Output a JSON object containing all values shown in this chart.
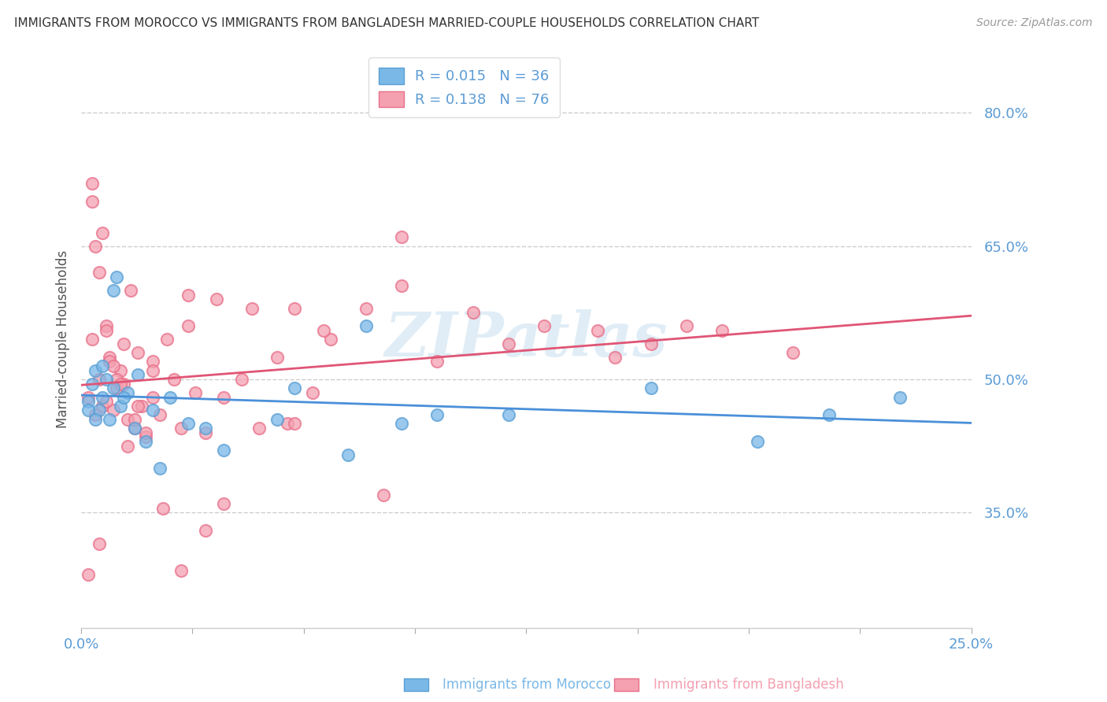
{
  "title": "IMMIGRANTS FROM MOROCCO VS IMMIGRANTS FROM BANGLADESH MARRIED-COUPLE HOUSEHOLDS CORRELATION CHART",
  "source": "Source: ZipAtlas.com",
  "xlabel_morocco": "Immigrants from Morocco",
  "xlabel_bangladesh": "Immigrants from Bangladesh",
  "ylabel": "Married-couple Households",
  "morocco_R": 0.015,
  "morocco_N": 36,
  "bangladesh_R": 0.138,
  "bangladesh_N": 76,
  "morocco_color": "#7ab8e8",
  "bangladesh_color": "#f4a0b0",
  "morocco_edge_color": "#5a9fd4",
  "bangladesh_edge_color": "#e8708a",
  "morocco_line_color": "#4a90d9",
  "bangladesh_line_color": "#e05575",
  "xlim": [
    0.0,
    0.25
  ],
  "ylim": [
    0.22,
    0.87
  ],
  "yticks": [
    0.35,
    0.5,
    0.65,
    0.8
  ],
  "ytick_labels": [
    "35.0%",
    "50.0%",
    "65.0%",
    "80.0%"
  ],
  "xticks": [
    0.0,
    0.03125,
    0.0625,
    0.09375,
    0.125,
    0.15625,
    0.1875,
    0.21875,
    0.25
  ],
  "watermark": "ZIPatlas",
  "background_color": "#ffffff",
  "grid_color": "#c8c8c8",
  "title_color": "#333333",
  "axis_label_color": "#5b9bd5",
  "legend_color": "#5b9bd5",
  "morocco_points_x": [
    0.002,
    0.003,
    0.004,
    0.005,
    0.006,
    0.007,
    0.008,
    0.009,
    0.01,
    0.011,
    0.013,
    0.015,
    0.018,
    0.02,
    0.025,
    0.03,
    0.04,
    0.06,
    0.08,
    0.09,
    0.1,
    0.12,
    0.002,
    0.004,
    0.006,
    0.009,
    0.012,
    0.016,
    0.022,
    0.035,
    0.055,
    0.075,
    0.16,
    0.19,
    0.21,
    0.23
  ],
  "morocco_points_y": [
    0.475,
    0.495,
    0.51,
    0.465,
    0.48,
    0.5,
    0.455,
    0.49,
    0.615,
    0.47,
    0.485,
    0.445,
    0.43,
    0.465,
    0.48,
    0.45,
    0.42,
    0.49,
    0.56,
    0.45,
    0.46,
    0.46,
    0.465,
    0.455,
    0.515,
    0.6,
    0.48,
    0.505,
    0.4,
    0.445,
    0.455,
    0.415,
    0.49,
    0.43,
    0.46,
    0.48
  ],
  "bangladesh_points_x": [
    0.002,
    0.003,
    0.004,
    0.005,
    0.006,
    0.007,
    0.008,
    0.009,
    0.01,
    0.011,
    0.012,
    0.013,
    0.014,
    0.015,
    0.016,
    0.017,
    0.018,
    0.02,
    0.022,
    0.024,
    0.026,
    0.028,
    0.03,
    0.032,
    0.035,
    0.038,
    0.04,
    0.045,
    0.05,
    0.055,
    0.06,
    0.065,
    0.07,
    0.08,
    0.09,
    0.1,
    0.003,
    0.006,
    0.01,
    0.015,
    0.02,
    0.005,
    0.008,
    0.012,
    0.003,
    0.007,
    0.004,
    0.009,
    0.011,
    0.016,
    0.023,
    0.028,
    0.035,
    0.048,
    0.058,
    0.068,
    0.085,
    0.15,
    0.17,
    0.2,
    0.005,
    0.018,
    0.03,
    0.09,
    0.12,
    0.002,
    0.007,
    0.013,
    0.02,
    0.04,
    0.06,
    0.11,
    0.13,
    0.145,
    0.16,
    0.18
  ],
  "bangladesh_points_y": [
    0.48,
    0.72,
    0.65,
    0.5,
    0.47,
    0.56,
    0.525,
    0.465,
    0.49,
    0.51,
    0.495,
    0.455,
    0.6,
    0.445,
    0.53,
    0.47,
    0.435,
    0.48,
    0.46,
    0.545,
    0.5,
    0.445,
    0.56,
    0.485,
    0.44,
    0.59,
    0.48,
    0.5,
    0.445,
    0.525,
    0.58,
    0.485,
    0.545,
    0.58,
    0.605,
    0.52,
    0.7,
    0.665,
    0.5,
    0.455,
    0.52,
    0.62,
    0.52,
    0.54,
    0.545,
    0.555,
    0.46,
    0.515,
    0.495,
    0.47,
    0.355,
    0.285,
    0.33,
    0.58,
    0.45,
    0.555,
    0.37,
    0.525,
    0.56,
    0.53,
    0.315,
    0.44,
    0.595,
    0.66,
    0.54,
    0.28,
    0.475,
    0.425,
    0.51,
    0.36,
    0.45,
    0.575,
    0.56,
    0.555,
    0.54,
    0.555
  ]
}
